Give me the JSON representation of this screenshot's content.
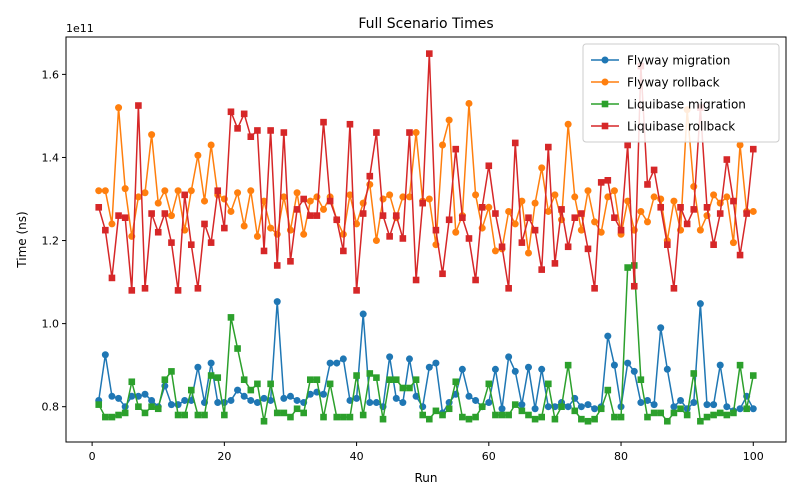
{
  "chart_data": {
    "type": "line",
    "title": "Full Scenario Times",
    "xlabel": "Run",
    "ylabel": "Time (ns)",
    "offset_label": "1e11",
    "x_ticks": [
      0,
      20,
      40,
      60,
      80,
      100
    ],
    "y_ticks": [
      0.8,
      1.0,
      1.2,
      1.4,
      1.6
    ],
    "y_tick_labels": [
      "0.8",
      "1.0",
      "1.2",
      "1.4",
      "1.6"
    ],
    "xlim": [
      -3.95,
      104.95
    ],
    "ylim": [
      0.715,
      1.69
    ],
    "y_unit": "1e11 ns",
    "grid": false,
    "legend_position": "top-right",
    "x": [
      1,
      2,
      3,
      4,
      5,
      6,
      7,
      8,
      9,
      10,
      11,
      12,
      13,
      14,
      15,
      16,
      17,
      18,
      19,
      20,
      21,
      22,
      23,
      24,
      25,
      26,
      27,
      28,
      29,
      30,
      31,
      32,
      33,
      34,
      35,
      36,
      37,
      38,
      39,
      40,
      41,
      42,
      43,
      44,
      45,
      46,
      47,
      48,
      49,
      50,
      51,
      52,
      53,
      54,
      55,
      56,
      57,
      58,
      59,
      60,
      61,
      62,
      63,
      64,
      65,
      66,
      67,
      68,
      69,
      70,
      71,
      72,
      73,
      74,
      75,
      76,
      77,
      78,
      79,
      80,
      81,
      82,
      83,
      84,
      85,
      86,
      87,
      88,
      89,
      90,
      91,
      92,
      93,
      94,
      95,
      96,
      97,
      98,
      99,
      100
    ],
    "series": [
      {
        "name": "Flyway migration",
        "color": "#1f77b4",
        "marker": "circle",
        "values": [
          0.815,
          0.925,
          0.825,
          0.82,
          0.8,
          0.825,
          0.825,
          0.83,
          0.815,
          0.8,
          0.85,
          0.805,
          0.805,
          0.815,
          0.815,
          0.895,
          0.81,
          0.905,
          0.81,
          0.81,
          0.815,
          0.84,
          0.825,
          0.815,
          0.81,
          0.82,
          0.815,
          1.053,
          0.82,
          0.825,
          0.815,
          0.81,
          0.83,
          0.835,
          0.83,
          0.905,
          0.905,
          0.915,
          0.815,
          0.82,
          1.023,
          0.81,
          0.81,
          0.8,
          0.92,
          0.82,
          0.81,
          0.915,
          0.825,
          0.8,
          0.895,
          0.905,
          0.785,
          0.81,
          0.83,
          0.89,
          0.825,
          0.815,
          0.8,
          0.81,
          0.89,
          0.795,
          0.92,
          0.885,
          0.805,
          0.895,
          0.795,
          0.89,
          0.8,
          0.8,
          0.81,
          0.8,
          0.82,
          0.8,
          0.805,
          0.795,
          0.8,
          0.97,
          0.9,
          0.8,
          0.905,
          0.885,
          0.81,
          0.815,
          0.805,
          0.99,
          0.89,
          0.8,
          0.815,
          0.795,
          0.81,
          1.048,
          0.805,
          0.805,
          0.9,
          0.8,
          0.79,
          0.795,
          0.825,
          0.795
        ]
      },
      {
        "name": "Flyway rollback",
        "color": "#ff7f0e",
        "marker": "circle",
        "values": [
          1.32,
          1.32,
          1.24,
          1.52,
          1.325,
          1.21,
          1.305,
          1.315,
          1.455,
          1.29,
          1.32,
          1.26,
          1.32,
          1.225,
          1.32,
          1.405,
          1.295,
          1.43,
          1.31,
          1.3,
          1.27,
          1.315,
          1.235,
          1.32,
          1.21,
          1.295,
          1.23,
          1.215,
          1.305,
          1.225,
          1.315,
          1.215,
          1.295,
          1.305,
          1.275,
          1.305,
          1.25,
          1.215,
          1.31,
          1.24,
          1.29,
          1.335,
          1.2,
          1.3,
          1.31,
          1.255,
          1.305,
          1.305,
          1.46,
          1.295,
          1.3,
          1.19,
          1.43,
          1.49,
          1.22,
          1.26,
          1.53,
          1.31,
          1.23,
          1.28,
          1.175,
          1.18,
          1.27,
          1.24,
          1.295,
          1.17,
          1.29,
          1.375,
          1.27,
          1.31,
          1.25,
          1.48,
          1.305,
          1.225,
          1.32,
          1.245,
          1.22,
          1.305,
          1.32,
          1.215,
          1.295,
          1.225,
          1.27,
          1.245,
          1.305,
          1.3,
          1.2,
          1.295,
          1.225,
          1.515,
          1.33,
          1.225,
          1.26,
          1.31,
          1.29,
          1.305,
          1.195,
          1.43,
          1.27,
          1.27
        ]
      },
      {
        "name": "Liquibase migration",
        "color": "#2ca02c",
        "marker": "square",
        "values": [
          0.805,
          0.775,
          0.775,
          0.78,
          0.785,
          0.86,
          0.8,
          0.785,
          0.8,
          0.795,
          0.865,
          0.885,
          0.78,
          0.78,
          0.84,
          0.78,
          0.78,
          0.875,
          0.87,
          0.78,
          1.015,
          0.94,
          0.865,
          0.84,
          0.855,
          0.765,
          0.855,
          0.785,
          0.785,
          0.775,
          0.795,
          0.785,
          0.865,
          0.865,
          0.775,
          0.855,
          0.775,
          0.775,
          0.775,
          0.875,
          0.78,
          0.88,
          0.87,
          0.77,
          0.865,
          0.865,
          0.845,
          0.845,
          0.865,
          0.78,
          0.77,
          0.79,
          0.78,
          0.795,
          0.86,
          0.775,
          0.77,
          0.775,
          0.8,
          0.855,
          0.78,
          0.78,
          0.78,
          0.805,
          0.79,
          0.78,
          0.77,
          0.775,
          0.855,
          0.77,
          0.8,
          0.9,
          0.79,
          0.77,
          0.765,
          0.77,
          0.795,
          0.84,
          0.775,
          0.775,
          1.135,
          1.14,
          0.865,
          0.775,
          0.785,
          0.785,
          0.765,
          0.785,
          0.795,
          0.78,
          0.88,
          0.765,
          0.775,
          0.78,
          0.785,
          0.78,
          0.785,
          0.9,
          0.795,
          0.875
        ]
      },
      {
        "name": "Liquibase rollback",
        "color": "#d62728",
        "marker": "square",
        "values": [
          1.28,
          1.225,
          1.11,
          1.26,
          1.255,
          1.08,
          1.525,
          1.085,
          1.265,
          1.22,
          1.265,
          1.195,
          1.08,
          1.31,
          1.19,
          1.085,
          1.24,
          1.195,
          1.32,
          1.23,
          1.51,
          1.47,
          1.505,
          1.45,
          1.465,
          1.175,
          1.465,
          1.14,
          1.46,
          1.15,
          1.275,
          1.3,
          1.26,
          1.26,
          1.485,
          1.295,
          1.25,
          1.175,
          1.48,
          1.08,
          1.265,
          1.355,
          1.46,
          1.26,
          1.21,
          1.26,
          1.205,
          1.46,
          1.105,
          1.29,
          1.65,
          1.225,
          1.12,
          1.25,
          1.42,
          1.255,
          1.205,
          1.105,
          1.28,
          1.38,
          1.265,
          1.185,
          1.085,
          1.435,
          1.195,
          1.255,
          1.225,
          1.13,
          1.425,
          1.145,
          1.275,
          1.185,
          1.255,
          1.265,
          1.18,
          1.085,
          1.34,
          1.345,
          1.255,
          1.225,
          1.43,
          1.09,
          1.62,
          1.335,
          1.37,
          1.28,
          1.19,
          1.085,
          1.28,
          1.24,
          1.275,
          1.52,
          1.28,
          1.19,
          1.265,
          1.395,
          1.295,
          1.165,
          1.265,
          1.42
        ]
      }
    ]
  }
}
